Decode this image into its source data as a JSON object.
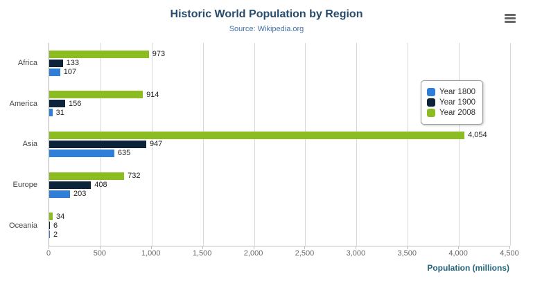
{
  "chart": {
    "title": "Historic World Population by Region",
    "subtitle": "Source: Wikipedia.org",
    "xaxis_title": "Population (millions)"
  },
  "chart_data": {
    "type": "bar",
    "orientation": "horizontal",
    "title": "Historic World Population by Region",
    "subtitle": "Source: Wikipedia.org",
    "categories": [
      "Africa",
      "America",
      "Asia",
      "Europe",
      "Oceania"
    ],
    "series": [
      {
        "name": "Year 1800",
        "color": "#2f7ed8",
        "values": [
          107,
          31,
          635,
          203,
          2
        ]
      },
      {
        "name": "Year 1900",
        "color": "#0d233a",
        "values": [
          133,
          156,
          947,
          408,
          6
        ]
      },
      {
        "name": "Year 2008",
        "color": "#8bbc21",
        "values": [
          973,
          914,
          4054,
          732,
          34
        ]
      }
    ],
    "bar_order_top_to_bottom": [
      "Year 2008",
      "Year 1900",
      "Year 1800"
    ],
    "xlabel": "Population (millions)",
    "xlim": [
      0,
      4500
    ],
    "xticks": [
      0,
      500,
      1000,
      1500,
      2000,
      2500,
      3000,
      3500,
      4000,
      4500
    ],
    "grid": true,
    "legend_position": "right"
  }
}
